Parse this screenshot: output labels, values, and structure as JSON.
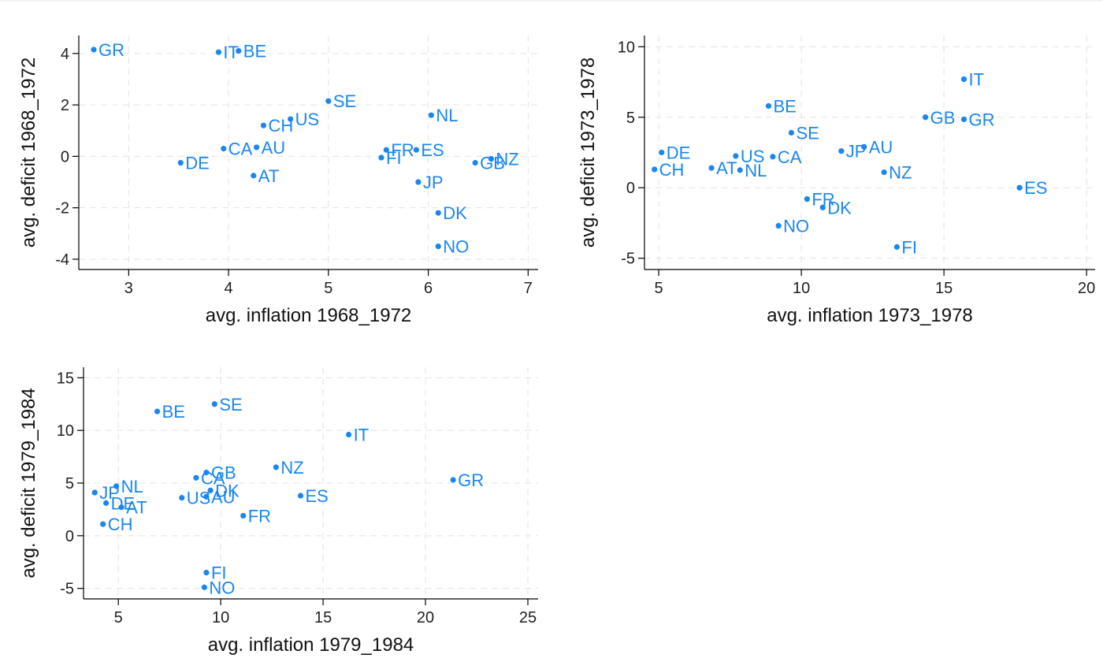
{
  "chart_data": [
    {
      "type": "scatter",
      "title": "",
      "xlabel": "avg. inflation 1968_1972",
      "ylabel": "avg. deficit  1968_1972",
      "color": "#1a86f0",
      "xlim": [
        2.5,
        7.1
      ],
      "ylim": [
        -4.4,
        4.7
      ],
      "xticks": [
        3,
        4,
        5,
        6,
        7
      ],
      "yticks": [
        -4,
        -2,
        0,
        2,
        4
      ],
      "points": [
        {
          "label": "GR",
          "x": 2.65,
          "y": 4.15
        },
        {
          "label": "IT",
          "x": 3.9,
          "y": 4.05
        },
        {
          "label": "BE",
          "x": 4.1,
          "y": 4.1
        },
        {
          "label": "SE",
          "x": 5.0,
          "y": 2.15
        },
        {
          "label": "US",
          "x": 4.62,
          "y": 1.45
        },
        {
          "label": "CH",
          "x": 4.35,
          "y": 1.2
        },
        {
          "label": "NL",
          "x": 6.03,
          "y": 1.6
        },
        {
          "label": "CA",
          "x": 3.95,
          "y": 0.3
        },
        {
          "label": "AU",
          "x": 4.28,
          "y": 0.35
        },
        {
          "label": "FR",
          "x": 5.58,
          "y": 0.25
        },
        {
          "label": "ES",
          "x": 5.88,
          "y": 0.25
        },
        {
          "label": "FI",
          "x": 5.53,
          "y": -0.05
        },
        {
          "label": "GB",
          "x": 6.47,
          "y": -0.25
        },
        {
          "label": "NZ",
          "x": 6.63,
          "y": -0.1
        },
        {
          "label": "DE",
          "x": 3.52,
          "y": -0.25
        },
        {
          "label": "AT",
          "x": 4.25,
          "y": -0.75
        },
        {
          "label": "JP",
          "x": 5.9,
          "y": -1.0
        },
        {
          "label": "DK",
          "x": 6.1,
          "y": -2.2
        },
        {
          "label": "NO",
          "x": 6.1,
          "y": -3.5
        }
      ]
    },
    {
      "type": "scatter",
      "title": "",
      "xlabel": "avg. inflation 1973_1978",
      "ylabel": "avg. deficit  1973_1978",
      "color": "#1a86f0",
      "xlim": [
        4.5,
        20.3
      ],
      "ylim": [
        -5.8,
        10.8
      ],
      "xticks": [
        5,
        10,
        15,
        20
      ],
      "yticks": [
        -5,
        0,
        5,
        10
      ],
      "points": [
        {
          "label": "IT",
          "x": 15.7,
          "y": 7.7
        },
        {
          "label": "BE",
          "x": 8.85,
          "y": 5.8
        },
        {
          "label": "GB",
          "x": 14.35,
          "y": 5.0
        },
        {
          "label": "GR",
          "x": 15.7,
          "y": 4.85
        },
        {
          "label": "SE",
          "x": 9.65,
          "y": 3.9
        },
        {
          "label": "AU",
          "x": 12.2,
          "y": 2.9
        },
        {
          "label": "JP",
          "x": 11.4,
          "y": 2.6
        },
        {
          "label": "DE",
          "x": 5.1,
          "y": 2.5
        },
        {
          "label": "US",
          "x": 7.7,
          "y": 2.25
        },
        {
          "label": "CA",
          "x": 9.0,
          "y": 2.2
        },
        {
          "label": "AT",
          "x": 6.85,
          "y": 1.4
        },
        {
          "label": "NL",
          "x": 7.85,
          "y": 1.25
        },
        {
          "label": "CH",
          "x": 4.85,
          "y": 1.3
        },
        {
          "label": "NZ",
          "x": 12.9,
          "y": 1.1
        },
        {
          "label": "ES",
          "x": 17.65,
          "y": 0.0
        },
        {
          "label": "FR",
          "x": 10.2,
          "y": -0.8
        },
        {
          "label": "DK",
          "x": 10.75,
          "y": -1.4
        },
        {
          "label": "NO",
          "x": 9.2,
          "y": -2.7
        },
        {
          "label": "FI",
          "x": 13.35,
          "y": -4.2
        }
      ]
    },
    {
      "type": "scatter",
      "title": "",
      "xlabel": "avg. inflation 1979_1984",
      "ylabel": "avg. deficit  1979_1984",
      "color": "#1a86f0",
      "xlim": [
        3.3,
        25.5
      ],
      "ylim": [
        -6.0,
        16.0
      ],
      "xticks": [
        5,
        10,
        15,
        20,
        25
      ],
      "yticks": [
        -5,
        0,
        5,
        10,
        15
      ],
      "points": [
        {
          "label": "SE",
          "x": 9.7,
          "y": 12.5
        },
        {
          "label": "BE",
          "x": 6.9,
          "y": 11.8
        },
        {
          "label": "IT",
          "x": 16.25,
          "y": 9.6
        },
        {
          "label": "NZ",
          "x": 12.7,
          "y": 6.5
        },
        {
          "label": "GB",
          "x": 9.3,
          "y": 6.0
        },
        {
          "label": "CA",
          "x": 8.8,
          "y": 5.5
        },
        {
          "label": "GR",
          "x": 21.35,
          "y": 5.3
        },
        {
          "label": "NL",
          "x": 4.9,
          "y": 4.7
        },
        {
          "label": "JP",
          "x": 3.85,
          "y": 4.1
        },
        {
          "label": "DK",
          "x": 9.5,
          "y": 4.3
        },
        {
          "label": "AU",
          "x": 9.3,
          "y": 3.7
        },
        {
          "label": "ES",
          "x": 13.9,
          "y": 3.8
        },
        {
          "label": "US",
          "x": 8.1,
          "y": 3.6
        },
        {
          "label": "DE",
          "x": 4.4,
          "y": 3.1
        },
        {
          "label": "AT",
          "x": 5.15,
          "y": 2.7
        },
        {
          "label": "FR",
          "x": 11.1,
          "y": 1.9
        },
        {
          "label": "CH",
          "x": 4.25,
          "y": 1.1
        },
        {
          "label": "FI",
          "x": 9.3,
          "y": -3.5
        },
        {
          "label": "NO",
          "x": 9.2,
          "y": -4.9
        }
      ]
    }
  ]
}
